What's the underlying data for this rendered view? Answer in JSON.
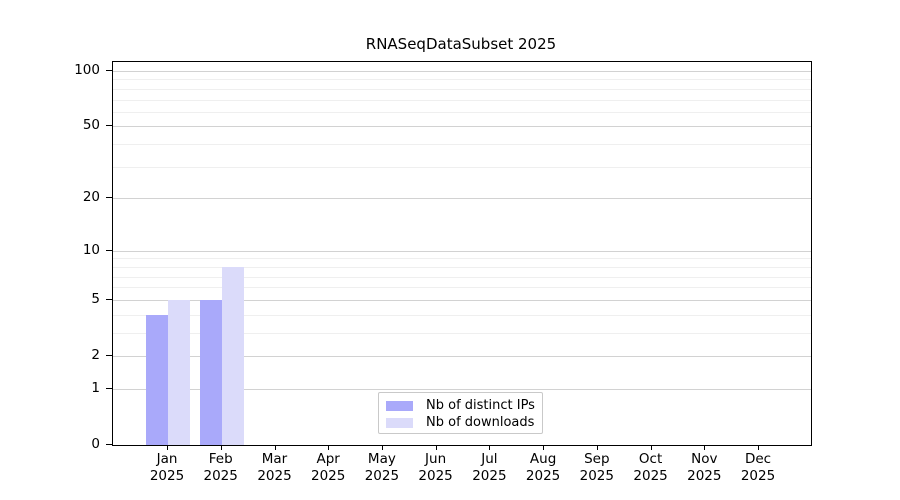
{
  "chart_data": {
    "type": "bar",
    "title": "RNASeqDataSubset 2025",
    "categories": [
      "Jan",
      "Feb",
      "Mar",
      "Apr",
      "May",
      "Jun",
      "Jul",
      "Aug",
      "Sep",
      "Oct",
      "Nov",
      "Dec"
    ],
    "year": "2025",
    "series": [
      {
        "name": "Nb of distinct IPs",
        "color": "#a9a9fa",
        "values": [
          4,
          5,
          0,
          0,
          0,
          0,
          0,
          0,
          0,
          0,
          0,
          0
        ]
      },
      {
        "name": "Nb of downloads",
        "color": "#dbdbfa",
        "values": [
          5,
          8,
          0,
          0,
          0,
          0,
          0,
          0,
          0,
          0,
          0,
          0
        ]
      }
    ],
    "xlabel": "",
    "ylabel": "",
    "yscale": "log1p",
    "yticks": [
      0,
      1,
      2,
      5,
      10,
      20,
      50,
      100
    ],
    "yticks_minor": [
      3,
      4,
      6,
      7,
      8,
      9,
      30,
      40,
      60,
      70,
      80,
      90
    ],
    "ylim": [
      0,
      112
    ],
    "grid": "horizontal",
    "legend_position": "bottom-center"
  }
}
